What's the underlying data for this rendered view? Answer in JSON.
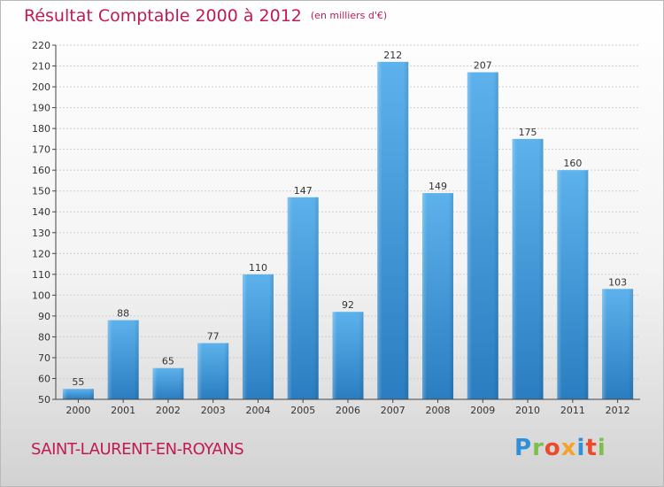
{
  "header": {
    "title": "Résultat Comptable 2000 à 2012",
    "subtitle": "(en milliers d'€)"
  },
  "footer": {
    "place": "SAINT-LAURENT-EN-ROYANS",
    "logo": "Proxiti"
  },
  "colors": {
    "accent": "#c21a52",
    "bar_light": "#5db2ec",
    "bar_dark": "#2a7dc0"
  },
  "chart_data": {
    "type": "bar",
    "title": "Résultat Comptable 2000 à 2012",
    "subtitle": "(en milliers d'€)",
    "xlabel": "",
    "ylabel": "",
    "categories": [
      "2000",
      "2001",
      "2002",
      "2003",
      "2004",
      "2005",
      "2006",
      "2007",
      "2008",
      "2009",
      "2010",
      "2011",
      "2012"
    ],
    "values": [
      55,
      88,
      65,
      77,
      110,
      147,
      92,
      212,
      149,
      207,
      175,
      160,
      103
    ],
    "ylim": [
      50,
      220
    ],
    "yticks": [
      50,
      60,
      70,
      80,
      90,
      100,
      110,
      120,
      130,
      140,
      150,
      160,
      170,
      180,
      190,
      200,
      210,
      220
    ],
    "grid": true,
    "data_labels": true
  }
}
